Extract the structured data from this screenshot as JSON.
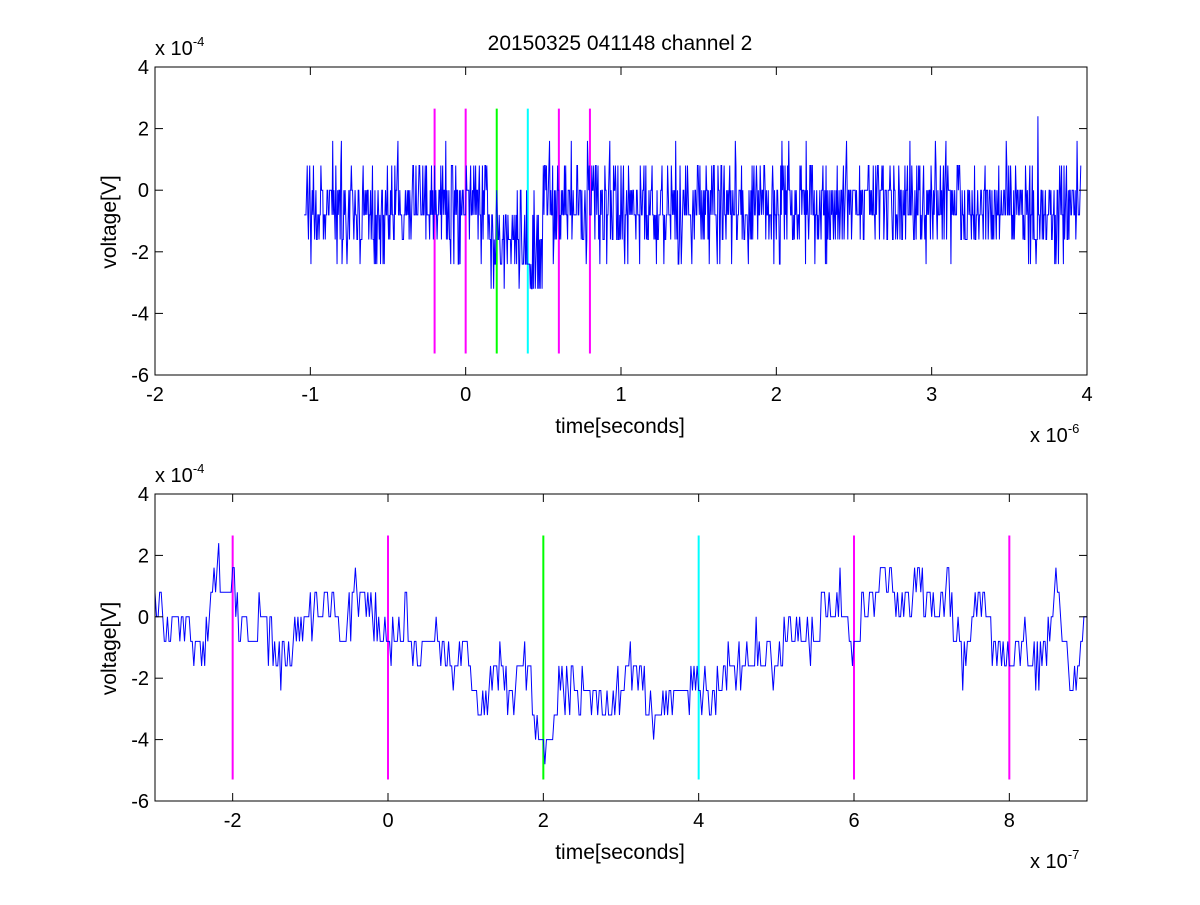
{
  "title": "20150325 041148 channel 2",
  "colors": {
    "trace": "#0000ff",
    "axis": "#000000",
    "marker_magenta": "#ff00ff",
    "marker_green": "#00ff00",
    "marker_cyan": "#00ffff"
  },
  "chart_data": [
    {
      "type": "line",
      "xlabel": "time[seconds]",
      "ylabel": "voltage[V]",
      "x_exponent": {
        "base": "x 10",
        "power": "-6"
      },
      "y_exponent": {
        "base": "x 10",
        "power": "-4"
      },
      "xlim": [
        -2,
        4
      ],
      "ylim": [
        -6,
        4
      ],
      "x_unit_scale": "1e-6",
      "y_unit_scale": "1e-4",
      "xticks": [
        "-2",
        "-1",
        "0",
        "1",
        "2",
        "3",
        "4"
      ],
      "yticks": [
        "-6",
        "-4",
        "-2",
        "0",
        "2",
        "4"
      ],
      "grid": false,
      "markers": [
        {
          "x": -0.2,
          "color": "magenta",
          "y_range": [
            -5.3,
            2.65
          ]
        },
        {
          "x": 0.0,
          "color": "magenta",
          "y_range": [
            -5.3,
            2.65
          ]
        },
        {
          "x": 0.2,
          "color": "green",
          "y_range": [
            -5.3,
            2.65
          ]
        },
        {
          "x": 0.4,
          "color": "cyan",
          "y_range": [
            -5.3,
            2.65
          ]
        },
        {
          "x": 0.6,
          "color": "magenta",
          "y_range": [
            -5.3,
            2.65
          ]
        },
        {
          "x": 0.8,
          "color": "magenta",
          "y_range": [
            -5.3,
            2.65
          ]
        }
      ],
      "series": [
        {
          "quantization_levels": [
            -4.0,
            -3.2,
            -2.4,
            -1.6,
            -0.8,
            0.0,
            0.8,
            1.6,
            2.4
          ],
          "x_start": -1.04,
          "x_end": 3.96,
          "approx_samples": 1250,
          "baseline": -0.5,
          "noise_range": [
            -3.2,
            2.4
          ],
          "dip_region": {
            "x_start": 0.15,
            "x_end": 0.5,
            "min": -4.0
          }
        }
      ]
    },
    {
      "type": "line",
      "xlabel": "time[seconds]",
      "ylabel": "voltage[V]",
      "x_exponent": {
        "base": "x 10",
        "power": "-7"
      },
      "y_exponent": {
        "base": "x 10",
        "power": "-4"
      },
      "xlim": [
        -3,
        9
      ],
      "ylim": [
        -6,
        4
      ],
      "x_unit_scale": "1e-7",
      "y_unit_scale": "1e-4",
      "xticks": [
        "-2",
        "0",
        "2",
        "4",
        "6",
        "8"
      ],
      "yticks": [
        "-6",
        "-4",
        "-2",
        "0",
        "2",
        "4"
      ],
      "grid": false,
      "markers": [
        {
          "x": -2,
          "color": "magenta",
          "y_range": [
            -5.3,
            2.65
          ]
        },
        {
          "x": 0,
          "color": "magenta",
          "y_range": [
            -5.3,
            2.65
          ]
        },
        {
          "x": 2,
          "color": "green",
          "y_range": [
            -5.3,
            2.65
          ]
        },
        {
          "x": 4,
          "color": "cyan",
          "y_range": [
            -5.3,
            2.65
          ]
        },
        {
          "x": 6,
          "color": "magenta",
          "y_range": [
            -5.3,
            2.65
          ]
        },
        {
          "x": 8,
          "color": "magenta",
          "y_range": [
            -5.3,
            2.65
          ]
        }
      ],
      "series": [
        {
          "x": [
            -3.0,
            -2.8,
            -2.6,
            -2.4,
            -2.2,
            -2.0,
            -1.8,
            -1.6,
            -1.4,
            -1.2,
            -1.0,
            -0.8,
            -0.6,
            -0.4,
            -0.2,
            0.0,
            0.2,
            0.4,
            0.6,
            0.8,
            1.0,
            1.2,
            1.4,
            1.6,
            1.8,
            2.0,
            2.2,
            2.4,
            2.6,
            2.8,
            3.0,
            3.2,
            3.4,
            3.6,
            3.8,
            4.0,
            4.2,
            4.4,
            4.6,
            4.8,
            5.0,
            5.2,
            5.4,
            5.6,
            5.8,
            6.0,
            6.2,
            6.4,
            6.6,
            6.8,
            7.0,
            7.2,
            7.4,
            7.6,
            7.8,
            8.0,
            8.2,
            8.4,
            8.6,
            8.8,
            9.0
          ],
          "y": [
            0.8,
            -0.8,
            0.0,
            -1.6,
            1.6,
            0.8,
            -0.8,
            0.0,
            -1.6,
            -0.8,
            0.0,
            0.8,
            -0.8,
            0.8,
            0.0,
            -0.8,
            0.0,
            -1.6,
            0.0,
            -1.6,
            -0.8,
            -3.2,
            -1.6,
            -2.4,
            -1.6,
            -4.8,
            -2.4,
            -2.4,
            -2.4,
            -3.2,
            -2.4,
            -1.6,
            -3.2,
            -2.4,
            -2.4,
            -2.4,
            -2.4,
            -1.6,
            -1.6,
            -0.8,
            -1.6,
            0.0,
            -0.8,
            0.0,
            0.8,
            -0.8,
            0.8,
            1.6,
            0.0,
            1.6,
            0.0,
            0.8,
            -1.6,
            0.8,
            -0.8,
            -1.6,
            -0.8,
            -1.6,
            0.8,
            -2.4,
            0.0
          ],
          "y_detail": "dense 2e-9 s sampling; trace jitters between the quantization levels around these values"
        }
      ]
    }
  ]
}
